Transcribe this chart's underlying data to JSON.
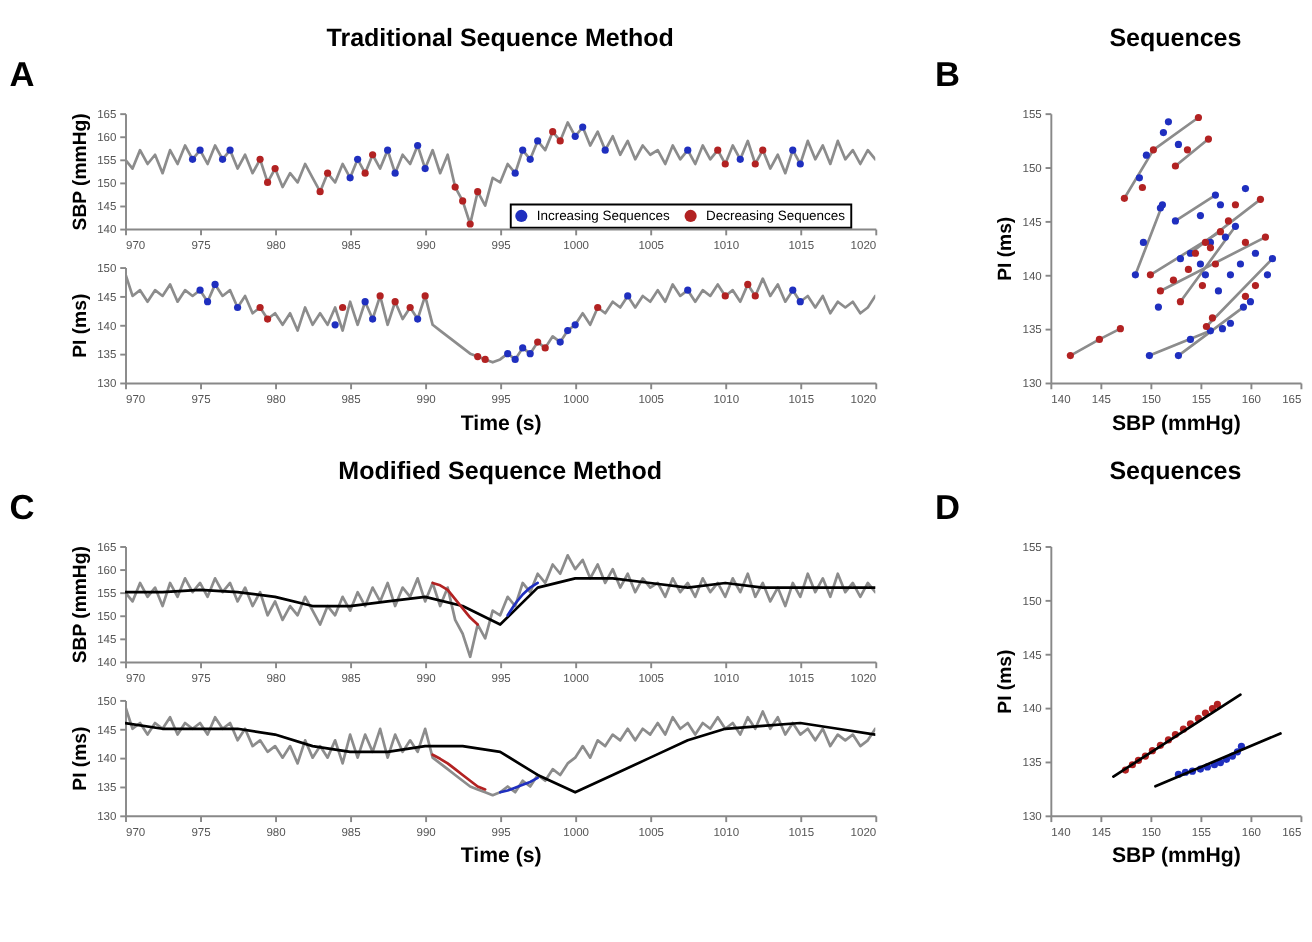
{
  "chart_data": [
    {
      "type": "line",
      "title": "Traditional Sequence Method",
      "ylabel": "SBP (mmHg)",
      "annotations": [
        "A"
      ],
      "legend": "bottom right",
      "xlim": [
        970,
        1020
      ],
      "xticks": [
        970,
        975,
        980,
        985,
        990,
        995,
        1000,
        1005,
        1010,
        1015,
        1020
      ],
      "ylim": [
        140,
        165
      ],
      "yticks": [
        140,
        145,
        150,
        155,
        160,
        165
      ],
      "x": [
        970,
        970.5,
        971,
        971.5,
        972,
        972.5,
        973,
        973.5,
        974,
        974.5,
        975,
        975.5,
        976,
        976.5,
        977,
        977.5,
        978,
        978.5,
        979,
        979.5,
        980,
        980.5,
        981,
        981.5,
        982,
        982.5,
        983,
        983.5,
        984,
        984.5,
        985,
        985.5,
        986,
        986.5,
        987,
        987.5,
        988,
        988.5,
        989,
        989.5,
        990,
        990.5,
        991,
        991.5,
        992,
        992.5,
        993,
        993.5,
        994,
        994.5,
        995,
        995.5,
        996,
        996.5,
        997,
        997.5,
        998,
        998.5,
        999,
        999.5,
        1000,
        1000.5,
        1001,
        1001.5,
        1002,
        1002.5,
        1003,
        1003.5,
        1004,
        1004.5,
        1005,
        1005.5,
        1006,
        1006.5,
        1007,
        1007.5,
        1008,
        1008.5,
        1009,
        1009.5,
        1010,
        1010.5,
        1011,
        1011.5,
        1012,
        1012.5,
        1013,
        1013.5,
        1014,
        1014.5,
        1015,
        1015.5,
        1016,
        1016.5,
        1017,
        1017.5,
        1018,
        1018.5,
        1019,
        1019.5,
        1020
      ],
      "series": [
        {
          "color": "#8c8c8c",
          "values": [
            155,
            153,
            157,
            154,
            156,
            152,
            157,
            154,
            158,
            155,
            157,
            154,
            158,
            155,
            157,
            153,
            156,
            152,
            155,
            150,
            153,
            149,
            152,
            150,
            154,
            151,
            148,
            152,
            150,
            154,
            151,
            155,
            152,
            156,
            153,
            157,
            152,
            156,
            154,
            158,
            153,
            157,
            152,
            156,
            149,
            146,
            141,
            148,
            145,
            151,
            150,
            154,
            152,
            157,
            155,
            159,
            157,
            161,
            159,
            163,
            160,
            162,
            158,
            161,
            157,
            160,
            156,
            159,
            155,
            158,
            156,
            157,
            154,
            158,
            155,
            157,
            154,
            158,
            155,
            157,
            154,
            158,
            155,
            159,
            154,
            157,
            153,
            156,
            152,
            157,
            154,
            159,
            155,
            158,
            154,
            159,
            155,
            157,
            154,
            157,
            155
          ]
        },
        {
          "type": "scatter",
          "name": "Increasing Sequences",
          "color": "#1f2fbf",
          "x": [
            974.5,
            975,
            976.5,
            977,
            985,
            985.5,
            987.5,
            988,
            989.5,
            990,
            996,
            996.5,
            997,
            997.5,
            1000,
            1000.5,
            1002,
            1007.5,
            1011,
            1014.5,
            1015
          ],
          "values": [
            155,
            157,
            155,
            157,
            151,
            155,
            157,
            152,
            158,
            153,
            152,
            157,
            155,
            159,
            160,
            162,
            157,
            157,
            155,
            157,
            154
          ]
        },
        {
          "type": "scatter",
          "name": "Decreasing Sequences",
          "color": "#b22222",
          "x": [
            979,
            979.5,
            980,
            983,
            983.5,
            986,
            986.5,
            992,
            992.5,
            993,
            993.5,
            998.5,
            999,
            1009.5,
            1010,
            1012,
            1012.5
          ],
          "values": [
            155,
            150,
            153,
            148,
            152,
            152,
            156,
            149,
            146,
            141,
            148,
            161,
            159,
            157,
            154,
            154,
            157
          ]
        }
      ]
    },
    {
      "type": "line",
      "xlabel": "Time (s)",
      "ylabel": "PI (ms)",
      "xlim": [
        970,
        1020
      ],
      "xticks": [
        970,
        975,
        980,
        985,
        990,
        995,
        1000,
        1005,
        1010,
        1015,
        1020
      ],
      "ylim": [
        130,
        150
      ],
      "yticks": [
        130,
        135,
        140,
        145,
        150
      ],
      "x": [
        970,
        970.5,
        971,
        971.5,
        972,
        972.5,
        973,
        973.5,
        974,
        974.5,
        975,
        975.5,
        976,
        976.5,
        977,
        977.5,
        978,
        978.5,
        979,
        979.5,
        980,
        980.5,
        981,
        981.5,
        982,
        982.5,
        983,
        983.5,
        984,
        984.5,
        985,
        985.5,
        986,
        986.5,
        987,
        987.5,
        988,
        988.5,
        989,
        989.5,
        990,
        990.5,
        991,
        991.5,
        992,
        992.5,
        993,
        993.5,
        994,
        994.5,
        995,
        995.5,
        996,
        996.5,
        997,
        997.5,
        998,
        998.5,
        999,
        999.5,
        1000,
        1000.5,
        1001,
        1001.5,
        1002,
        1002.5,
        1003,
        1003.5,
        1004,
        1004.5,
        1005,
        1005.5,
        1006,
        1006.5,
        1007,
        1007.5,
        1008,
        1008.5,
        1009,
        1009.5,
        1010,
        1010.5,
        1011,
        1011.5,
        1012,
        1012.5,
        1013,
        1013.5,
        1014,
        1014.5,
        1015,
        1015.5,
        1016,
        1016.5,
        1017,
        1017.5,
        1018,
        1018.5,
        1019,
        1019.5,
        1020
      ],
      "series": [
        {
          "color": "#8c8c8c",
          "values": [
            149,
            145,
            146,
            144,
            146,
            145,
            147,
            144,
            146,
            145,
            146,
            144,
            147,
            145,
            146,
            143,
            145,
            142,
            143,
            141,
            142,
            140,
            142,
            139,
            143,
            140,
            142,
            140,
            143,
            139,
            144,
            140,
            144,
            141,
            145,
            140,
            144,
            141,
            143,
            141,
            145,
            140,
            139,
            138,
            137,
            136,
            135,
            134.5,
            134,
            133.5,
            134,
            135,
            134,
            136,
            135,
            137,
            136,
            138,
            137,
            139,
            140,
            142,
            140,
            143,
            142,
            144,
            143,
            145,
            143,
            145,
            144,
            146,
            144,
            147,
            145,
            146,
            144,
            146,
            145,
            147,
            145,
            146,
            144,
            147,
            145,
            148,
            145,
            147,
            144,
            146,
            144,
            145,
            143,
            145,
            142,
            144,
            143,
            144,
            142,
            143,
            145
          ]
        },
        {
          "type": "scatter",
          "color": "#1f2fbf",
          "x": [
            975,
            975.5,
            976,
            977.5,
            984,
            986,
            986.5,
            989.5,
            995.5,
            996,
            996.5,
            997,
            999,
            999.5,
            1000,
            1003.5,
            1007.5,
            1014.5,
            1015
          ],
          "values": [
            146,
            144,
            147,
            143,
            140,
            144,
            141,
            141,
            135,
            134,
            136,
            135,
            137,
            139,
            140,
            145,
            146,
            146,
            144
          ]
        },
        {
          "type": "scatter",
          "color": "#b22222",
          "x": [
            979,
            979.5,
            984.5,
            987,
            988,
            989,
            990,
            993.5,
            994,
            997.5,
            998,
            1001.5,
            1010,
            1011.5,
            1012
          ],
          "values": [
            143,
            141,
            143,
            145,
            144,
            143,
            145,
            134.5,
            134,
            137,
            136,
            143,
            145,
            147,
            145
          ]
        }
      ]
    },
    {
      "type": "scatter",
      "title": "Sequences",
      "xlabel": "SBP (mmHg)",
      "ylabel": "PI (ms)",
      "annotations": [
        "B"
      ],
      "xlim": [
        140,
        165
      ],
      "xticks": [
        140,
        145,
        150,
        155,
        160,
        165
      ],
      "ylim": [
        130,
        155
      ],
      "yticks": [
        130,
        135,
        140,
        145,
        150,
        155
      ],
      "series": [
        {
          "type": "line",
          "color": "#8c8c8c",
          "x": [
            142,
            144.9,
            147
          ],
          "values": [
            132.5,
            134,
            135
          ]
        },
        {
          "type": "line",
          "color": "#8c8c8c",
          "x": [
            147.4,
            150.3
          ],
          "values": [
            147.1,
            151.6
          ]
        },
        {
          "type": "line",
          "color": "#8c8c8c",
          "x": [
            150.3,
            154.8
          ],
          "values": [
            151.6,
            154.6
          ]
        },
        {
          "type": "line",
          "color": "#8c8c8c",
          "x": [
            152.5,
            155.8
          ],
          "values": [
            150.1,
            152.6
          ]
        },
        {
          "type": "line",
          "color": "#8c8c8c",
          "x": [
            148.5,
            151.2
          ],
          "values": [
            140,
            146.5
          ]
        },
        {
          "type": "line",
          "color": "#8c8c8c",
          "x": [
            150,
            157
          ],
          "values": [
            140,
            144
          ]
        },
        {
          "type": "line",
          "color": "#8c8c8c",
          "x": [
            151,
            161.5
          ],
          "values": [
            138.5,
            143.5
          ]
        },
        {
          "type": "line",
          "color": "#8c8c8c",
          "x": [
            153,
            158.5
          ],
          "values": [
            137.5,
            144.5
          ]
        },
        {
          "type": "line",
          "color": "#8c8c8c",
          "x": [
            149.9,
            156
          ],
          "values": [
            132.5,
            134.8
          ]
        },
        {
          "type": "line",
          "color": "#8c8c8c",
          "x": [
            152.8,
            159.3
          ],
          "values": [
            132.5,
            137
          ]
        },
        {
          "type": "line",
          "color": "#8c8c8c",
          "x": [
            155.6,
            162.2
          ],
          "values": [
            135.2,
            141.5
          ]
        },
        {
          "type": "line",
          "color": "#8c8c8c",
          "x": [
            152.5,
            156.5
          ],
          "values": [
            145,
            147.4
          ]
        },
        {
          "type": "line",
          "color": "#8c8c8c",
          "x": [
            154,
            161
          ],
          "values": [
            142,
            147
          ]
        },
        {
          "color": "#1f2fbf",
          "x": [
            148.5,
            149.3,
            150.8,
            151,
            151.2,
            152.5,
            153,
            154,
            155,
            155.5,
            156,
            156.5,
            157,
            157.5,
            158,
            158.5,
            159,
            159.5,
            160,
            160.5,
            161.7,
            162.2,
            149.9,
            152.8,
            154,
            156,
            157.2,
            158,
            148.9,
            149.6,
            151.3,
            151.8,
            152.8,
            155,
            156.8,
            159.3
          ],
          "values": [
            140,
            143,
            137,
            146.2,
            146.5,
            145,
            141.5,
            142,
            145.5,
            140,
            143,
            147.4,
            146.5,
            143.5,
            140,
            144.5,
            141,
            148,
            137.5,
            142,
            140,
            141.5,
            132.5,
            132.5,
            134,
            134.8,
            135,
            135.5,
            149,
            151.1,
            153.2,
            154.2,
            152.1,
            141,
            138.5,
            137
          ]
        },
        {
          "color": "#b22222",
          "x": [
            142,
            144.9,
            147,
            147.4,
            149.2,
            150.3,
            152.5,
            153.7,
            154.8,
            155.8,
            150,
            151,
            152.3,
            153,
            153.8,
            154.5,
            155.2,
            156,
            156.5,
            157,
            157.8,
            158.5,
            159.5,
            160.5,
            161,
            161.5,
            156.2,
            159.5,
            155.6,
            155.5
          ],
          "values": [
            132.5,
            134,
            135,
            147.1,
            148.1,
            151.6,
            150.1,
            151.6,
            154.6,
            152.6,
            140,
            138.5,
            139.5,
            137.5,
            140.5,
            142,
            139,
            142.5,
            141,
            144,
            145,
            146.5,
            143,
            139,
            147,
            143.5,
            136,
            138,
            135.2,
            143
          ]
        }
      ]
    },
    {
      "type": "line",
      "title": "Modified Sequence Method",
      "ylabel": "SBP (mmHg)",
      "annotations": [
        "C"
      ],
      "xlim": [
        970,
        1020
      ],
      "xticks": [
        970,
        975,
        980,
        985,
        990,
        995,
        1000,
        1005,
        1010,
        1015,
        1020
      ],
      "ylim": [
        140,
        165
      ],
      "yticks": [
        140,
        145,
        150,
        155,
        160,
        165
      ],
      "x": [
        970,
        970.5,
        971,
        971.5,
        972,
        972.5,
        973,
        973.5,
        974,
        974.5,
        975,
        975.5,
        976,
        976.5,
        977,
        977.5,
        978,
        978.5,
        979,
        979.5,
        980,
        980.5,
        981,
        981.5,
        982,
        982.5,
        983,
        983.5,
        984,
        984.5,
        985,
        985.5,
        986,
        986.5,
        987,
        987.5,
        988,
        988.5,
        989,
        989.5,
        990,
        990.5,
        991,
        991.5,
        992,
        992.5,
        993,
        993.5,
        994,
        994.5,
        995,
        995.5,
        996,
        996.5,
        997,
        997.5,
        998,
        998.5,
        999,
        999.5,
        1000,
        1000.5,
        1001,
        1001.5,
        1002,
        1002.5,
        1003,
        1003.5,
        1004,
        1004.5,
        1005,
        1005.5,
        1006,
        1006.5,
        1007,
        1007.5,
        1008,
        1008.5,
        1009,
        1009.5,
        1010,
        1010.5,
        1011,
        1011.5,
        1012,
        1012.5,
        1013,
        1013.5,
        1014,
        1014.5,
        1015,
        1015.5,
        1016,
        1016.5,
        1017,
        1017.5,
        1018,
        1018.5,
        1019,
        1019.5,
        1020
      ],
      "series": [
        {
          "color": "#8c8c8c",
          "values": [
            155,
            153,
            157,
            154,
            156,
            152,
            157,
            154,
            158,
            155,
            157,
            154,
            158,
            155,
            157,
            153,
            156,
            152,
            155,
            150,
            153,
            149,
            152,
            150,
            154,
            151,
            148,
            152,
            150,
            154,
            151,
            155,
            152,
            156,
            153,
            157,
            152,
            156,
            154,
            158,
            153,
            157,
            152,
            156,
            149,
            146,
            141,
            148,
            145,
            151,
            150,
            154,
            152,
            157,
            155,
            159,
            157,
            161,
            159,
            163,
            160,
            162,
            158,
            161,
            157,
            160,
            156,
            159,
            155,
            158,
            156,
            157,
            154,
            158,
            155,
            157,
            154,
            158,
            155,
            157,
            154,
            158,
            155,
            159,
            154,
            157,
            153,
            156,
            152,
            157,
            154,
            159,
            155,
            158,
            154,
            159,
            155,
            157,
            154,
            157,
            155
          ]
        },
        {
          "color": "#000000",
          "x": [
            970,
            972.5,
            975,
            977.5,
            980,
            982.5,
            985,
            987.5,
            990,
            992.5,
            995,
            997.5,
            1000,
            1002.5,
            1005,
            1007.5,
            1010,
            1012.5,
            1015,
            1017.5,
            1020
          ],
          "values": [
            155,
            155,
            155.5,
            155,
            154,
            152,
            152,
            153,
            154,
            152,
            148,
            156,
            158,
            158,
            157,
            156,
            157,
            156,
            156,
            156,
            156
          ]
        },
        {
          "color": "#b22222",
          "x": [
            990.5,
            991,
            991.5,
            992,
            992.5,
            993,
            993.5
          ],
          "values": [
            157,
            156.5,
            155.5,
            153.5,
            151.5,
            149.5,
            148
          ]
        },
        {
          "color": "#1f2fbf",
          "x": [
            995.5,
            996,
            996.5,
            997,
            997.5
          ],
          "values": [
            150,
            152.5,
            154.5,
            156,
            157
          ]
        }
      ]
    },
    {
      "type": "line",
      "xlabel": "Time (s)",
      "ylabel": "PI (ms)",
      "xlim": [
        970,
        1020
      ],
      "xticks": [
        970,
        975,
        980,
        985,
        990,
        995,
        1000,
        1005,
        1010,
        1015,
        1020
      ],
      "ylim": [
        130,
        150
      ],
      "yticks": [
        130,
        135,
        140,
        145,
        150
      ],
      "x": [
        970,
        970.5,
        971,
        971.5,
        972,
        972.5,
        973,
        973.5,
        974,
        974.5,
        975,
        975.5,
        976,
        976.5,
        977,
        977.5,
        978,
        978.5,
        979,
        979.5,
        980,
        980.5,
        981,
        981.5,
        982,
        982.5,
        983,
        983.5,
        984,
        984.5,
        985,
        985.5,
        986,
        986.5,
        987,
        987.5,
        988,
        988.5,
        989,
        989.5,
        990,
        990.5,
        991,
        991.5,
        992,
        992.5,
        993,
        993.5,
        994,
        994.5,
        995,
        995.5,
        996,
        996.5,
        997,
        997.5,
        998,
        998.5,
        999,
        999.5,
        1000,
        1000.5,
        1001,
        1001.5,
        1002,
        1002.5,
        1003,
        1003.5,
        1004,
        1004.5,
        1005,
        1005.5,
        1006,
        1006.5,
        1007,
        1007.5,
        1008,
        1008.5,
        1009,
        1009.5,
        1010,
        1010.5,
        1011,
        1011.5,
        1012,
        1012.5,
        1013,
        1013.5,
        1014,
        1014.5,
        1015,
        1015.5,
        1016,
        1016.5,
        1017,
        1017.5,
        1018,
        1018.5,
        1019,
        1019.5,
        1020
      ],
      "series": [
        {
          "color": "#8c8c8c",
          "values": [
            149,
            145,
            146,
            144,
            146,
            145,
            147,
            144,
            146,
            145,
            146,
            144,
            147,
            145,
            146,
            143,
            145,
            142,
            143,
            141,
            142,
            140,
            142,
            139,
            143,
            140,
            142,
            140,
            143,
            139,
            144,
            140,
            144,
            141,
            145,
            140,
            144,
            141,
            143,
            141,
            145,
            140,
            139,
            138,
            137,
            136,
            135,
            134.5,
            134,
            133.5,
            134,
            135,
            134,
            136,
            135,
            137,
            136,
            138,
            137,
            139,
            140,
            142,
            140,
            143,
            142,
            144,
            143,
            145,
            143,
            145,
            144,
            146,
            144,
            147,
            145,
            146,
            144,
            146,
            145,
            147,
            145,
            146,
            144,
            147,
            145,
            148,
            145,
            147,
            144,
            146,
            144,
            145,
            143,
            145,
            142,
            144,
            143,
            144,
            142,
            143,
            145
          ]
        },
        {
          "color": "#000000",
          "x": [
            970,
            972.5,
            975,
            977.5,
            980,
            982.5,
            985,
            987.5,
            990,
            992.5,
            995,
            997.5,
            1000,
            1002.5,
            1005,
            1007.5,
            1010,
            1012.5,
            1015,
            1017.5,
            1020
          ],
          "values": [
            146,
            145,
            145,
            145,
            144,
            142,
            141,
            141,
            142,
            142,
            141,
            137,
            134,
            137,
            140,
            143,
            145,
            145.5,
            146,
            145,
            144
          ]
        },
        {
          "color": "#b22222",
          "x": [
            990.5,
            991,
            991.5,
            992,
            992.5,
            993,
            993.5,
            994
          ],
          "values": [
            140.5,
            139.8,
            139,
            138,
            137,
            136,
            135,
            134.5
          ]
        },
        {
          "color": "#1f2fbf",
          "x": [
            995,
            995.5,
            996,
            996.5,
            997,
            997.5
          ],
          "values": [
            134,
            134.3,
            134.8,
            135.3,
            135.8,
            136.5
          ]
        }
      ]
    },
    {
      "type": "scatter",
      "title": "Sequences",
      "xlabel": "SBP (mmHg)",
      "ylabel": "PI (ms)",
      "annotations": [
        "D"
      ],
      "xlim": [
        140,
        165
      ],
      "xticks": [
        140,
        145,
        150,
        155,
        160,
        165
      ],
      "ylim": [
        130,
        155
      ],
      "yticks": [
        130,
        135,
        140,
        145,
        150,
        155
      ],
      "series": [
        {
          "color": "#b22222",
          "x": [
            147.5,
            148.2,
            148.8,
            149.5,
            150.2,
            151,
            151.8,
            152.5,
            153.3,
            154,
            154.8,
            155.5,
            156.2,
            156.7
          ],
          "values": [
            134.2,
            134.7,
            135.1,
            135.5,
            136,
            136.5,
            137,
            137.5,
            138,
            138.5,
            139,
            139.5,
            139.9,
            140.3
          ]
        },
        {
          "color": "#1f2fbf",
          "x": [
            152.8,
            153.5,
            154.2,
            155,
            155.7,
            156.4,
            157,
            157.6,
            158.2,
            158.7,
            159.1
          ],
          "values": [
            133.8,
            134,
            134.1,
            134.3,
            134.5,
            134.7,
            134.9,
            135.2,
            135.5,
            135.9,
            136.4
          ]
        },
        {
          "type": "line",
          "color": "#000000",
          "x": [
            146.3,
            159
          ],
          "values": [
            133.6,
            141.2
          ]
        },
        {
          "type": "line",
          "color": "#000000",
          "x": [
            150.5,
            163
          ],
          "values": [
            132.7,
            137.6
          ]
        }
      ]
    }
  ]
}
